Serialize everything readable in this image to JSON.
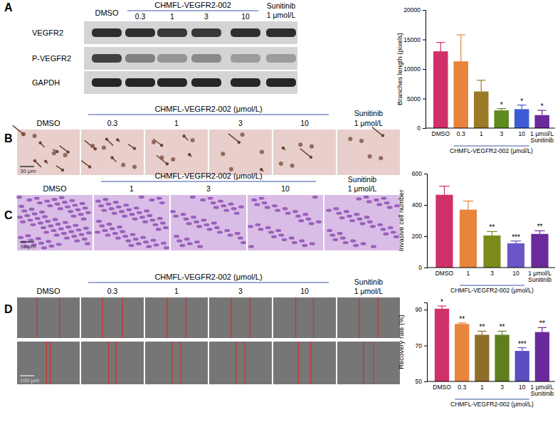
{
  "panels": {
    "A": {
      "label": "A",
      "header": {
        "control": "DMSO",
        "compound": "CHMFL-VEGFR2-002",
        "doses": [
          "0.3",
          "1",
          "3",
          "10"
        ],
        "reference": "Sunitinib",
        "reference_dose": "1 μmol/L"
      },
      "rows": [
        "VEGFR2",
        "P-VEGFR2",
        "GAPDH"
      ]
    },
    "B": {
      "label": "B",
      "control": "DMSO",
      "compound": "CHMFL-VEGFR2-002 (μmol/L)",
      "doses": [
        "0.3",
        "1",
        "3",
        "10"
      ],
      "reference": "Sunitinib",
      "reference_dose": "1 μmol/L",
      "scale_bar": "30 μm"
    },
    "C": {
      "label": "C",
      "control": "DMSO",
      "compound": "CHMFL-VEGFR2-002 (μmol/L)",
      "doses": [
        "1",
        "3",
        "10"
      ],
      "reference": "Sunitinib",
      "reference_dose": "1 μmol/L",
      "scale_bar": "30 μm"
    },
    "D": {
      "label": "D",
      "control": "DMSO",
      "compound": "CHMFL-VEGFR2-002 (μmol/L)",
      "doses": [
        "0.3",
        "1",
        "3",
        "10"
      ],
      "reference": "Sunitinib",
      "reference_dose": "1 μmol/L",
      "scale_bar": "100 μm"
    }
  },
  "chart_data": [
    {
      "type": "bar",
      "y_label": "Branches length (pixels)",
      "group_label": "CHMFL-VEGFR2-002 (μmol/L)",
      "categories": [
        "DMSO",
        "0.3",
        "1",
        "3",
        "10",
        "1 μmol/L Sunitinib"
      ],
      "values": [
        13000,
        11300,
        6200,
        3000,
        3200,
        2200
      ],
      "error": [
        1500,
        4500,
        1900,
        300,
        700,
        800
      ],
      "annotations": [
        null,
        null,
        null,
        "*",
        "*",
        "*"
      ],
      "colors": [
        "#d0306a",
        "#e8843c",
        "#9a7a26",
        "#5e8a20",
        "#3d5bd6",
        "#6b2a9c"
      ],
      "ylim": [
        0,
        20000
      ],
      "yticks": [
        0,
        5000,
        10000,
        15000,
        20000
      ]
    },
    {
      "type": "bar",
      "y_label": "Invasive cell number",
      "group_label": "CHMFL-VEGFR2-002 (μmol/L)",
      "categories": [
        "DMSO",
        "1",
        "3",
        "10",
        "1 μmol/L Sunitinib"
      ],
      "values": [
        465,
        370,
        205,
        155,
        215
      ],
      "error": [
        55,
        55,
        25,
        15,
        20
      ],
      "annotations": [
        null,
        null,
        "**",
        "***",
        "**"
      ],
      "colors": [
        "#d0306a",
        "#e8843c",
        "#7d8a1c",
        "#6b55c8",
        "#6b2a9c"
      ],
      "ylim": [
        0,
        600
      ],
      "yticks": [
        0,
        200,
        400,
        600
      ]
    },
    {
      "type": "bar",
      "y_label": "Recovery rate (%)",
      "group_label": "CHMFL-VEGFR2-002 (μmol/L)",
      "categories": [
        "DMSO",
        "0.3",
        "1",
        "3",
        "10",
        "1 μmol/L Sunitinib"
      ],
      "values": [
        90.5,
        82,
        76,
        76,
        67,
        77.5
      ],
      "error": [
        1.5,
        0.6,
        2,
        2,
        1.8,
        2.5
      ],
      "annotations": [
        "*",
        "**",
        "**",
        "**",
        "***",
        "**"
      ],
      "colors": [
        "#d0306a",
        "#e8843c",
        "#8f6e2a",
        "#5f7f1f",
        "#5a4ec0",
        "#6b2a9c"
      ],
      "ylim": [
        50,
        94
      ],
      "yticks": [
        50,
        70,
        90
      ]
    }
  ]
}
